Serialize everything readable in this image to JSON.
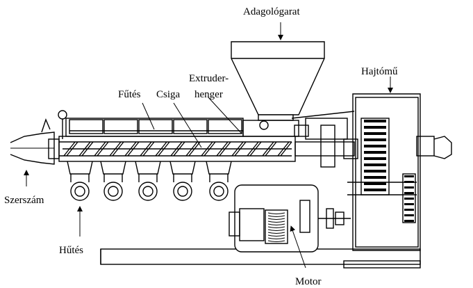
{
  "labels": {
    "hopper": "Adagológarat",
    "gearbox": "Hajtómű",
    "barrel_line1": "Extruder-",
    "barrel_line2": "henger",
    "heating": "Fűtés",
    "screw": "Csiga",
    "die": "Szerszám",
    "cooling": "Hűtés",
    "motor": "Motor"
  },
  "colors": {
    "line": "#000000",
    "background": "#ffffff"
  }
}
